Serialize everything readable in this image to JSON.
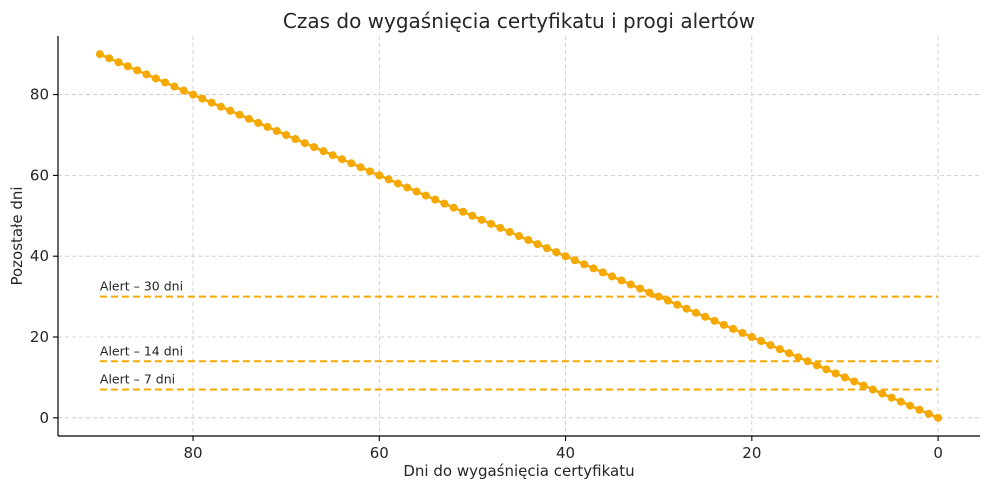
{
  "chart_data": {
    "type": "line",
    "title": "Czas do wygaśnięcia certyfikatu i progi alertów",
    "xlabel": "Dni do wygaśnięcia certyfikatu",
    "ylabel": "Pozostałe dni",
    "x_inverted": true,
    "xlim": [
      94.5,
      -4.5
    ],
    "ylim": [
      -4.5,
      94.5
    ],
    "xticks": [
      80,
      60,
      40,
      20,
      0
    ],
    "yticks": [
      0,
      20,
      40,
      60,
      80
    ],
    "grid": true,
    "series": [
      {
        "color": "#F5A800",
        "marker": "circle",
        "x_start": 90,
        "x_end": 0,
        "step": 1,
        "relation": "y = x"
      }
    ],
    "thresholds": [
      {
        "label": "Alert – 30 dni",
        "value": 30,
        "x_from": 90,
        "x_to": 0,
        "color": "#F5A800"
      },
      {
        "label": "Alert – 14 dni",
        "value": 14,
        "x_from": 90,
        "x_to": 0,
        "color": "#F5A800"
      },
      {
        "label": "Alert – 7 dni",
        "value": 7,
        "x_from": 90,
        "x_to": 0,
        "color": "#F5A800"
      }
    ]
  }
}
